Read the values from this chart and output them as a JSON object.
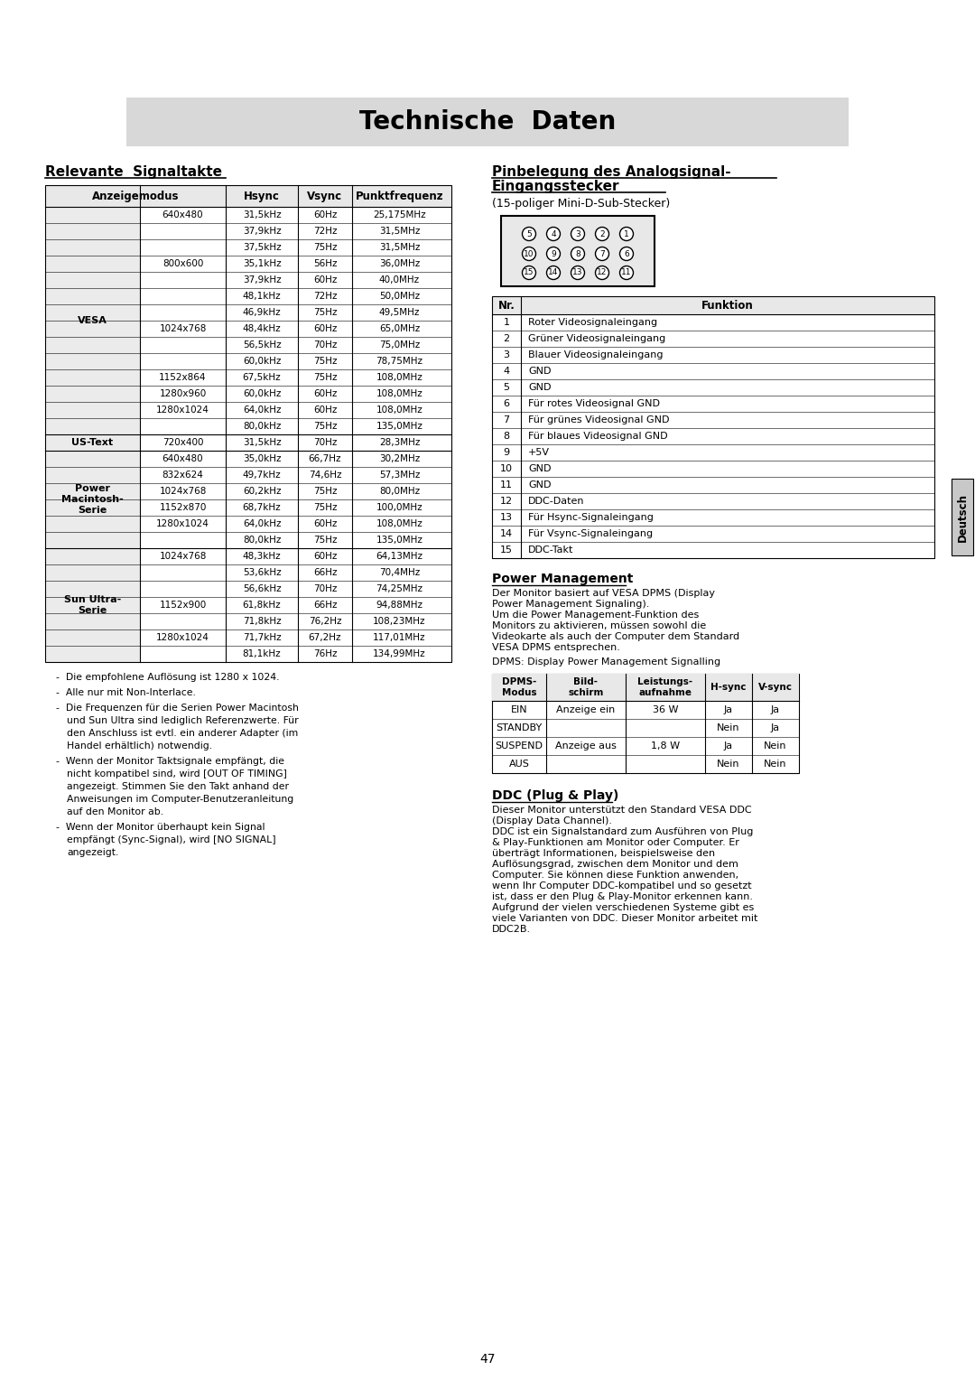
{
  "title": "Technische  Daten",
  "title_bg": "#d8d8d8",
  "bg_color": "#ffffff",
  "left_section_title": "Relevante  Signaltakte",
  "right_section_title_line1": "Pinbelegung des Analogsignal-",
  "right_section_title_line2": "Eingangsstecker",
  "right_section_subtitle": "(15-poliger Mini-D-Sub-Stecker)",
  "signal_rows": [
    [
      "VESA",
      "640x480",
      "31,5kHz",
      "60Hz",
      "25,175MHz"
    ],
    [
      "",
      "",
      "37,9kHz",
      "72Hz",
      "31,5MHz"
    ],
    [
      "",
      "",
      "37,5kHz",
      "75Hz",
      "31,5MHz"
    ],
    [
      "",
      "800x600",
      "35,1kHz",
      "56Hz",
      "36,0MHz"
    ],
    [
      "",
      "",
      "37,9kHz",
      "60Hz",
      "40,0MHz"
    ],
    [
      "",
      "",
      "48,1kHz",
      "72Hz",
      "50,0MHz"
    ],
    [
      "",
      "",
      "46,9kHz",
      "75Hz",
      "49,5MHz"
    ],
    [
      "",
      "1024x768",
      "48,4kHz",
      "60Hz",
      "65,0MHz"
    ],
    [
      "",
      "",
      "56,5kHz",
      "70Hz",
      "75,0MHz"
    ],
    [
      "",
      "",
      "60,0kHz",
      "75Hz",
      "78,75MHz"
    ],
    [
      "",
      "1152x864",
      "67,5kHz",
      "75Hz",
      "108,0MHz"
    ],
    [
      "",
      "1280x960",
      "60,0kHz",
      "60Hz",
      "108,0MHz"
    ],
    [
      "",
      "1280x1024",
      "64,0kHz",
      "60Hz",
      "108,0MHz"
    ],
    [
      "",
      "",
      "80,0kHz",
      "75Hz",
      "135,0MHz"
    ],
    [
      "US-Text",
      "720x400",
      "31,5kHz",
      "70Hz",
      "28,3MHz"
    ],
    [
      "Power\nMacintosh-\nSerie",
      "640x480",
      "35,0kHz",
      "66,7Hz",
      "30,2MHz"
    ],
    [
      "",
      "832x624",
      "49,7kHz",
      "74,6Hz",
      "57,3MHz"
    ],
    [
      "",
      "1024x768",
      "60,2kHz",
      "75Hz",
      "80,0MHz"
    ],
    [
      "",
      "1152x870",
      "68,7kHz",
      "75Hz",
      "100,0MHz"
    ],
    [
      "",
      "1280x1024",
      "64,0kHz",
      "60Hz",
      "108,0MHz"
    ],
    [
      "",
      "",
      "80,0kHz",
      "75Hz",
      "135,0MHz"
    ],
    [
      "Sun Ultra-\nSerie",
      "1024x768",
      "48,3kHz",
      "60Hz",
      "64,13MHz"
    ],
    [
      "",
      "",
      "53,6kHz",
      "66Hz",
      "70,4MHz"
    ],
    [
      "",
      "",
      "56,6kHz",
      "70Hz",
      "74,25MHz"
    ],
    [
      "",
      "1152x900",
      "61,8kHz",
      "66Hz",
      "94,88MHz"
    ],
    [
      "",
      "",
      "71,8kHz",
      "76,2Hz",
      "108,23MHz"
    ],
    [
      "",
      "1280x1024",
      "71,7kHz",
      "67,2Hz",
      "117,01MHz"
    ],
    [
      "",
      "",
      "81,1kHz",
      "76Hz",
      "134,99MHz"
    ]
  ],
  "notes": [
    "Die empfohlene Auflösung ist 1280 x 1024.",
    "Alle nur mit Non-Interlace.",
    "Die Frequenzen für die Serien Power Macintosh\nund Sun Ultra sind lediglich Referenzwerte. Für\nden Anschluss ist evtl. ein anderer Adapter (im\nHandel erhältlich) notwendig.",
    "Wenn der Monitor Taktsignale empfängt, die\nnicht kompatibel sind, wird [OUT OF TIMING]\nangezeigt. Stimmen Sie den Takt anhand der\nAnweisungen im Computer-Benutzeranleitung\nauf den Monitor ab.",
    "Wenn der Monitor überhaupt kein Signal\nempfängt (Sync-Signal), wird [NO SIGNAL]\nangezeigt."
  ],
  "pin_rows": [
    [
      "1",
      "Roter Videosignaleingang"
    ],
    [
      "2",
      "Grüner Videosignaleingang"
    ],
    [
      "3",
      "Blauer Videosignaleingang"
    ],
    [
      "4",
      "GND"
    ],
    [
      "5",
      "GND"
    ],
    [
      "6",
      "Für rotes Videosignal GND"
    ],
    [
      "7",
      "Für grünes Videosignal GND"
    ],
    [
      "8",
      "Für blaues Videosignal GND"
    ],
    [
      "9",
      "+5V"
    ],
    [
      "10",
      "GND"
    ],
    [
      "11",
      "GND"
    ],
    [
      "12",
      "DDC-Daten"
    ],
    [
      "13",
      "Für Hsync-Signaleingang"
    ],
    [
      "14",
      "Für Vsync-Signaleingang"
    ],
    [
      "15",
      "DDC-Takt"
    ]
  ],
  "power_mgmt_title": "Power Management",
  "power_mgmt_text": "Der Monitor basiert auf VESA DPMS (Display\nPower Management Signaling).\nUm die Power Management-Funktion des\nMonitors zu aktivieren, müssen sowohl die\nVideokarte als auch der Computer dem Standard\nVESA DPMS entsprechen.",
  "dpms_label": "DPMS: Display Power Management Signalling",
  "dpms_headers": [
    "DPMS-\nModus",
    "Bild-\nschirm",
    "Leistungs-\naufnahme",
    "H-sync",
    "V-sync"
  ],
  "dpms_rows": [
    [
      "EIN",
      "Anzeige ein",
      "36 W",
      "Ja",
      "Ja"
    ],
    [
      "STANDBY",
      "",
      "",
      "Nein",
      "Ja"
    ],
    [
      "SUSPEND",
      "Anzeige aus",
      "1,8 W",
      "Ja",
      "Nein"
    ],
    [
      "AUS",
      "",
      "",
      "Nein",
      "Nein"
    ]
  ],
  "ddc_title": "DDC (Plug & Play)",
  "ddc_text": "Dieser Monitor unterstützt den Standard VESA DDC\n(Display Data Channel).\nDDC ist ein Signalstandard zum Ausführen von Plug\n& Play-Funktionen am Monitor oder Computer. Er\nüberträgt Informationen, beispielsweise den\nAuflösungsgrad, zwischen dem Monitor und dem\nComputer. Sie können diese Funktion anwenden,\nwenn Ihr Computer DDC-kompatibel und so gesetzt\nist, dass er den Plug & Play-Monitor erkennen kann.\nAufgrund der vielen verschiedenen Systeme gibt es\nviele Varianten von DDC. Dieser Monitor arbeitet mit\nDDC2B.",
  "page_number": "47",
  "deutsch_tab": "Deutsch",
  "groups": [
    [
      "VESA",
      0,
      14
    ],
    [
      "US-Text",
      14,
      15
    ],
    [
      "Power\nMacintosh-\nSerie",
      15,
      21
    ],
    [
      "Sun Ultra-\nSerie",
      21,
      28
    ]
  ]
}
